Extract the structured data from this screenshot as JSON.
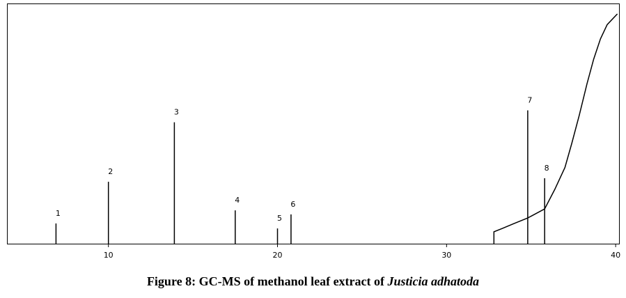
{
  "chart_data": {
    "type": "chromatogram",
    "caption": [
      "Figure 8: GC-MS of methanol leaf extract of",
      "Justicia adhatoda"
    ],
    "xlim": [
      4,
      40.2
    ],
    "ylim": [
      0,
      100
    ],
    "xticks": [
      10,
      20,
      30,
      40
    ],
    "color": "#000000",
    "peaks": {
      "x": [
        6.9,
        10.0,
        13.9,
        17.5,
        20.0,
        20.8,
        34.8,
        35.8
      ],
      "values": [
        8.5,
        26,
        51,
        14,
        6.4,
        12.3,
        56,
        27.5
      ],
      "labels": [
        "1",
        "2",
        "3",
        "4",
        "5",
        "6",
        "7",
        "8"
      ]
    },
    "trace": {
      "x": [
        32.8,
        32.8,
        33.3,
        34.0,
        34.8,
        35.8,
        36.4,
        37.0,
        37.4,
        37.85,
        38.3,
        38.7,
        39.1,
        39.5,
        40.1
      ],
      "values": [
        0,
        5,
        6.4,
        8.5,
        10.8,
        14.6,
        22.8,
        32,
        42,
        54,
        67,
        77.5,
        86,
        92,
        96.5
      ]
    }
  }
}
